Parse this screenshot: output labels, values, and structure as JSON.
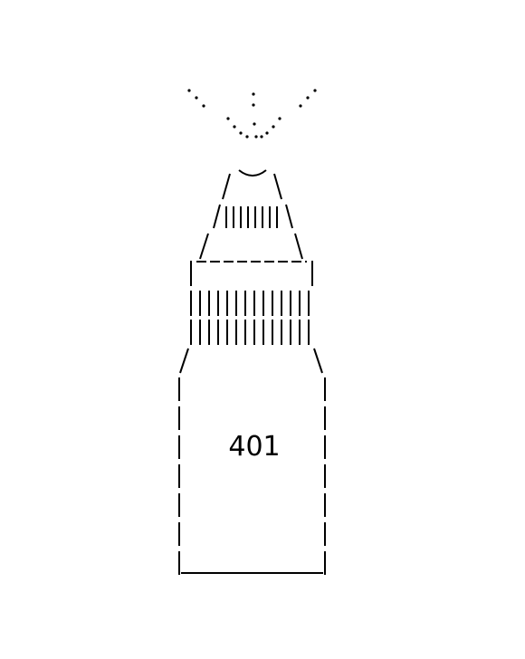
{
  "bottle": {
    "label": "401"
  },
  "colors": {
    "ink": "#000000",
    "background": "#ffffff"
  }
}
